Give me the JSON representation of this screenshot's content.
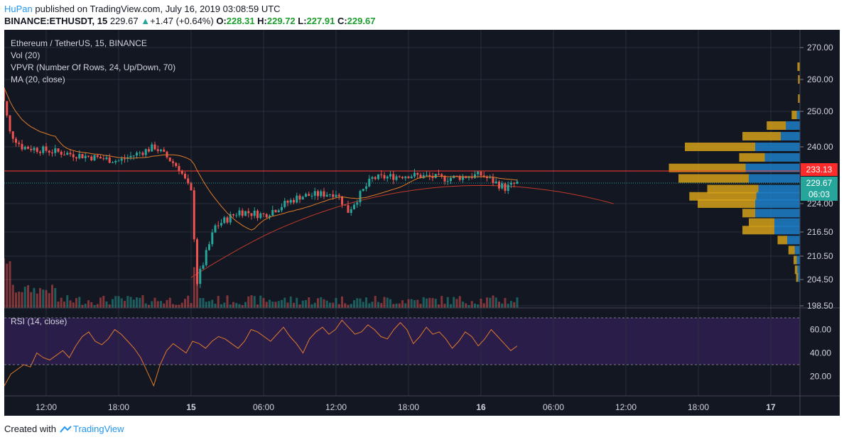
{
  "header": {
    "author": "HuPan",
    "published_text": "published on TradingView.com, July 16, 2019 03:08:59 UTC",
    "symbol": "BINANCE:ETHUSDT, 15",
    "last": "229.67",
    "change": "+1.47 (+0.64%)",
    "open_label": "O:",
    "open": "228.31",
    "high_label": "H:",
    "high": "229.72",
    "low_label": "L:",
    "low": "227.91",
    "close_label": "C:",
    "close": "229.67"
  },
  "legend": {
    "title": "Ethereum / TetherUS, 15, BINANCE",
    "vol": "Vol (20)",
    "vpvr": "VPVR (Number Of Rows, 24, Up/Down, 70)",
    "ma": "MA (20, close)",
    "rsi": "RSI (14, close)"
  },
  "footer": {
    "created_with": "Created with",
    "brand": "TradingView"
  },
  "colors": {
    "background": "#131722",
    "rsi_band": "#2a1d4a",
    "up": "#26a69a",
    "down": "#ef5350",
    "ma": "#e07b2a",
    "long_ma": "#c0392b",
    "hline": "#ff3b30",
    "vpvr_up": "#1e7fc8",
    "vpvr_down": "#d4a017",
    "price_badge": "#26a69a",
    "level_badge": "#ff2b2b"
  },
  "chart_data": {
    "type": "candlestick",
    "price_axis": {
      "ticks": [
        "270.00",
        "260.00",
        "250.00",
        "240.00",
        "224.00",
        "216.50",
        "210.50",
        "204.50",
        "198.50"
      ],
      "range": [
        198,
        272
      ]
    },
    "time_axis": {
      "ticks": [
        "12:00",
        "18:00",
        "15",
        "06:00",
        "12:00",
        "18:00",
        "16",
        "06:00",
        "12:00",
        "18:00",
        "17"
      ]
    },
    "horizontal_line": {
      "value": 233.13,
      "label": "233.13"
    },
    "last_price": {
      "value": 229.67,
      "label": "229.67",
      "countdown": "06:03"
    },
    "candles_summary": [
      {
        "t": "14 Jul 08:00",
        "o": 266,
        "c": 262
      },
      {
        "t": "14 Jul 09:00",
        "o": 262,
        "c": 244
      },
      {
        "t": "14 Jul 10:00",
        "o": 244,
        "c": 240
      },
      {
        "t": "14 Jul 12:00",
        "o": 240,
        "c": 239
      },
      {
        "t": "14 Jul 18:00",
        "o": 239,
        "c": 236
      },
      {
        "t": "14 Jul 21:00",
        "o": 236,
        "c": 240
      },
      {
        "t": "14 Jul 23:00",
        "o": 240,
        "c": 234
      },
      {
        "t": "15 Jul 00:00",
        "o": 234,
        "c": 227
      },
      {
        "t": "15 Jul 00:30",
        "o": 227,
        "c": 204
      },
      {
        "t": "15 Jul 02:00",
        "o": 204,
        "c": 218
      },
      {
        "t": "15 Jul 04:00",
        "o": 218,
        "c": 222
      },
      {
        "t": "15 Jul 06:00",
        "o": 222,
        "c": 221
      },
      {
        "t": "15 Jul 09:00",
        "o": 221,
        "c": 226
      },
      {
        "t": "15 Jul 12:00",
        "o": 226,
        "c": 227
      },
      {
        "t": "15 Jul 13:00",
        "o": 227,
        "c": 222
      },
      {
        "t": "15 Jul 15:00",
        "o": 222,
        "c": 231
      },
      {
        "t": "15 Jul 18:00",
        "o": 231,
        "c": 232
      },
      {
        "t": "15 Jul 21:00",
        "o": 232,
        "c": 231
      },
      {
        "t": "16 Jul 00:00",
        "o": 231,
        "c": 232
      },
      {
        "t": "16 Jul 02:00",
        "o": 232,
        "c": 228.3
      },
      {
        "t": "16 Jul 03:00",
        "o": 228.31,
        "c": 229.67
      }
    ],
    "vpvr_rows": [
      {
        "price": 264,
        "up": 0,
        "down": 4
      },
      {
        "price": 260,
        "up": 0,
        "down": 3
      },
      {
        "price": 254,
        "up": 0,
        "down": 3
      },
      {
        "price": 249,
        "up": 5,
        "down": 8
      },
      {
        "price": 246,
        "up": 22,
        "down": 30
      },
      {
        "price": 243,
        "up": 30,
        "down": 60
      },
      {
        "price": 240,
        "up": 70,
        "down": 110
      },
      {
        "price": 237,
        "up": 55,
        "down": 40
      },
      {
        "price": 234,
        "up": 85,
        "down": 120
      },
      {
        "price": 231,
        "up": 80,
        "down": 110
      },
      {
        "price": 228,
        "up": 65,
        "down": 80
      },
      {
        "price": 226,
        "up": 68,
        "down": 105
      },
      {
        "price": 224,
        "up": 70,
        "down": 90
      },
      {
        "price": 221.5,
        "up": 70,
        "down": 20
      },
      {
        "price": 219,
        "up": 40,
        "down": 40
      },
      {
        "price": 217,
        "up": 40,
        "down": 50
      },
      {
        "price": 214.5,
        "up": 20,
        "down": 15
      },
      {
        "price": 212,
        "up": 8,
        "down": 10
      },
      {
        "price": 209.5,
        "up": 5,
        "down": 5
      },
      {
        "price": 207,
        "up": 4,
        "down": 4
      },
      {
        "price": 205,
        "up": 3,
        "down": 3
      }
    ],
    "rsi": {
      "ticks": [
        "60.00",
        "40.00",
        "20.00"
      ],
      "range": [
        5,
        75
      ],
      "overbought": 70,
      "oversold": 30,
      "values": [
        46,
        12,
        22,
        26,
        30,
        28,
        40,
        36,
        34,
        38,
        42,
        36,
        46,
        54,
        58,
        50,
        47,
        52,
        60,
        56,
        50,
        44,
        36,
        24,
        12,
        30,
        42,
        48,
        44,
        40,
        50,
        48,
        44,
        50,
        54,
        52,
        48,
        44,
        50,
        60,
        58,
        54,
        50,
        56,
        62,
        54,
        48,
        40,
        52,
        58,
        62,
        56,
        60,
        68,
        62,
        56,
        58,
        64,
        60,
        54,
        52,
        60,
        66,
        60,
        48,
        54,
        62,
        56,
        58,
        52,
        44,
        50,
        58,
        54,
        46,
        52,
        60,
        54,
        48,
        42,
        46
      ]
    }
  }
}
